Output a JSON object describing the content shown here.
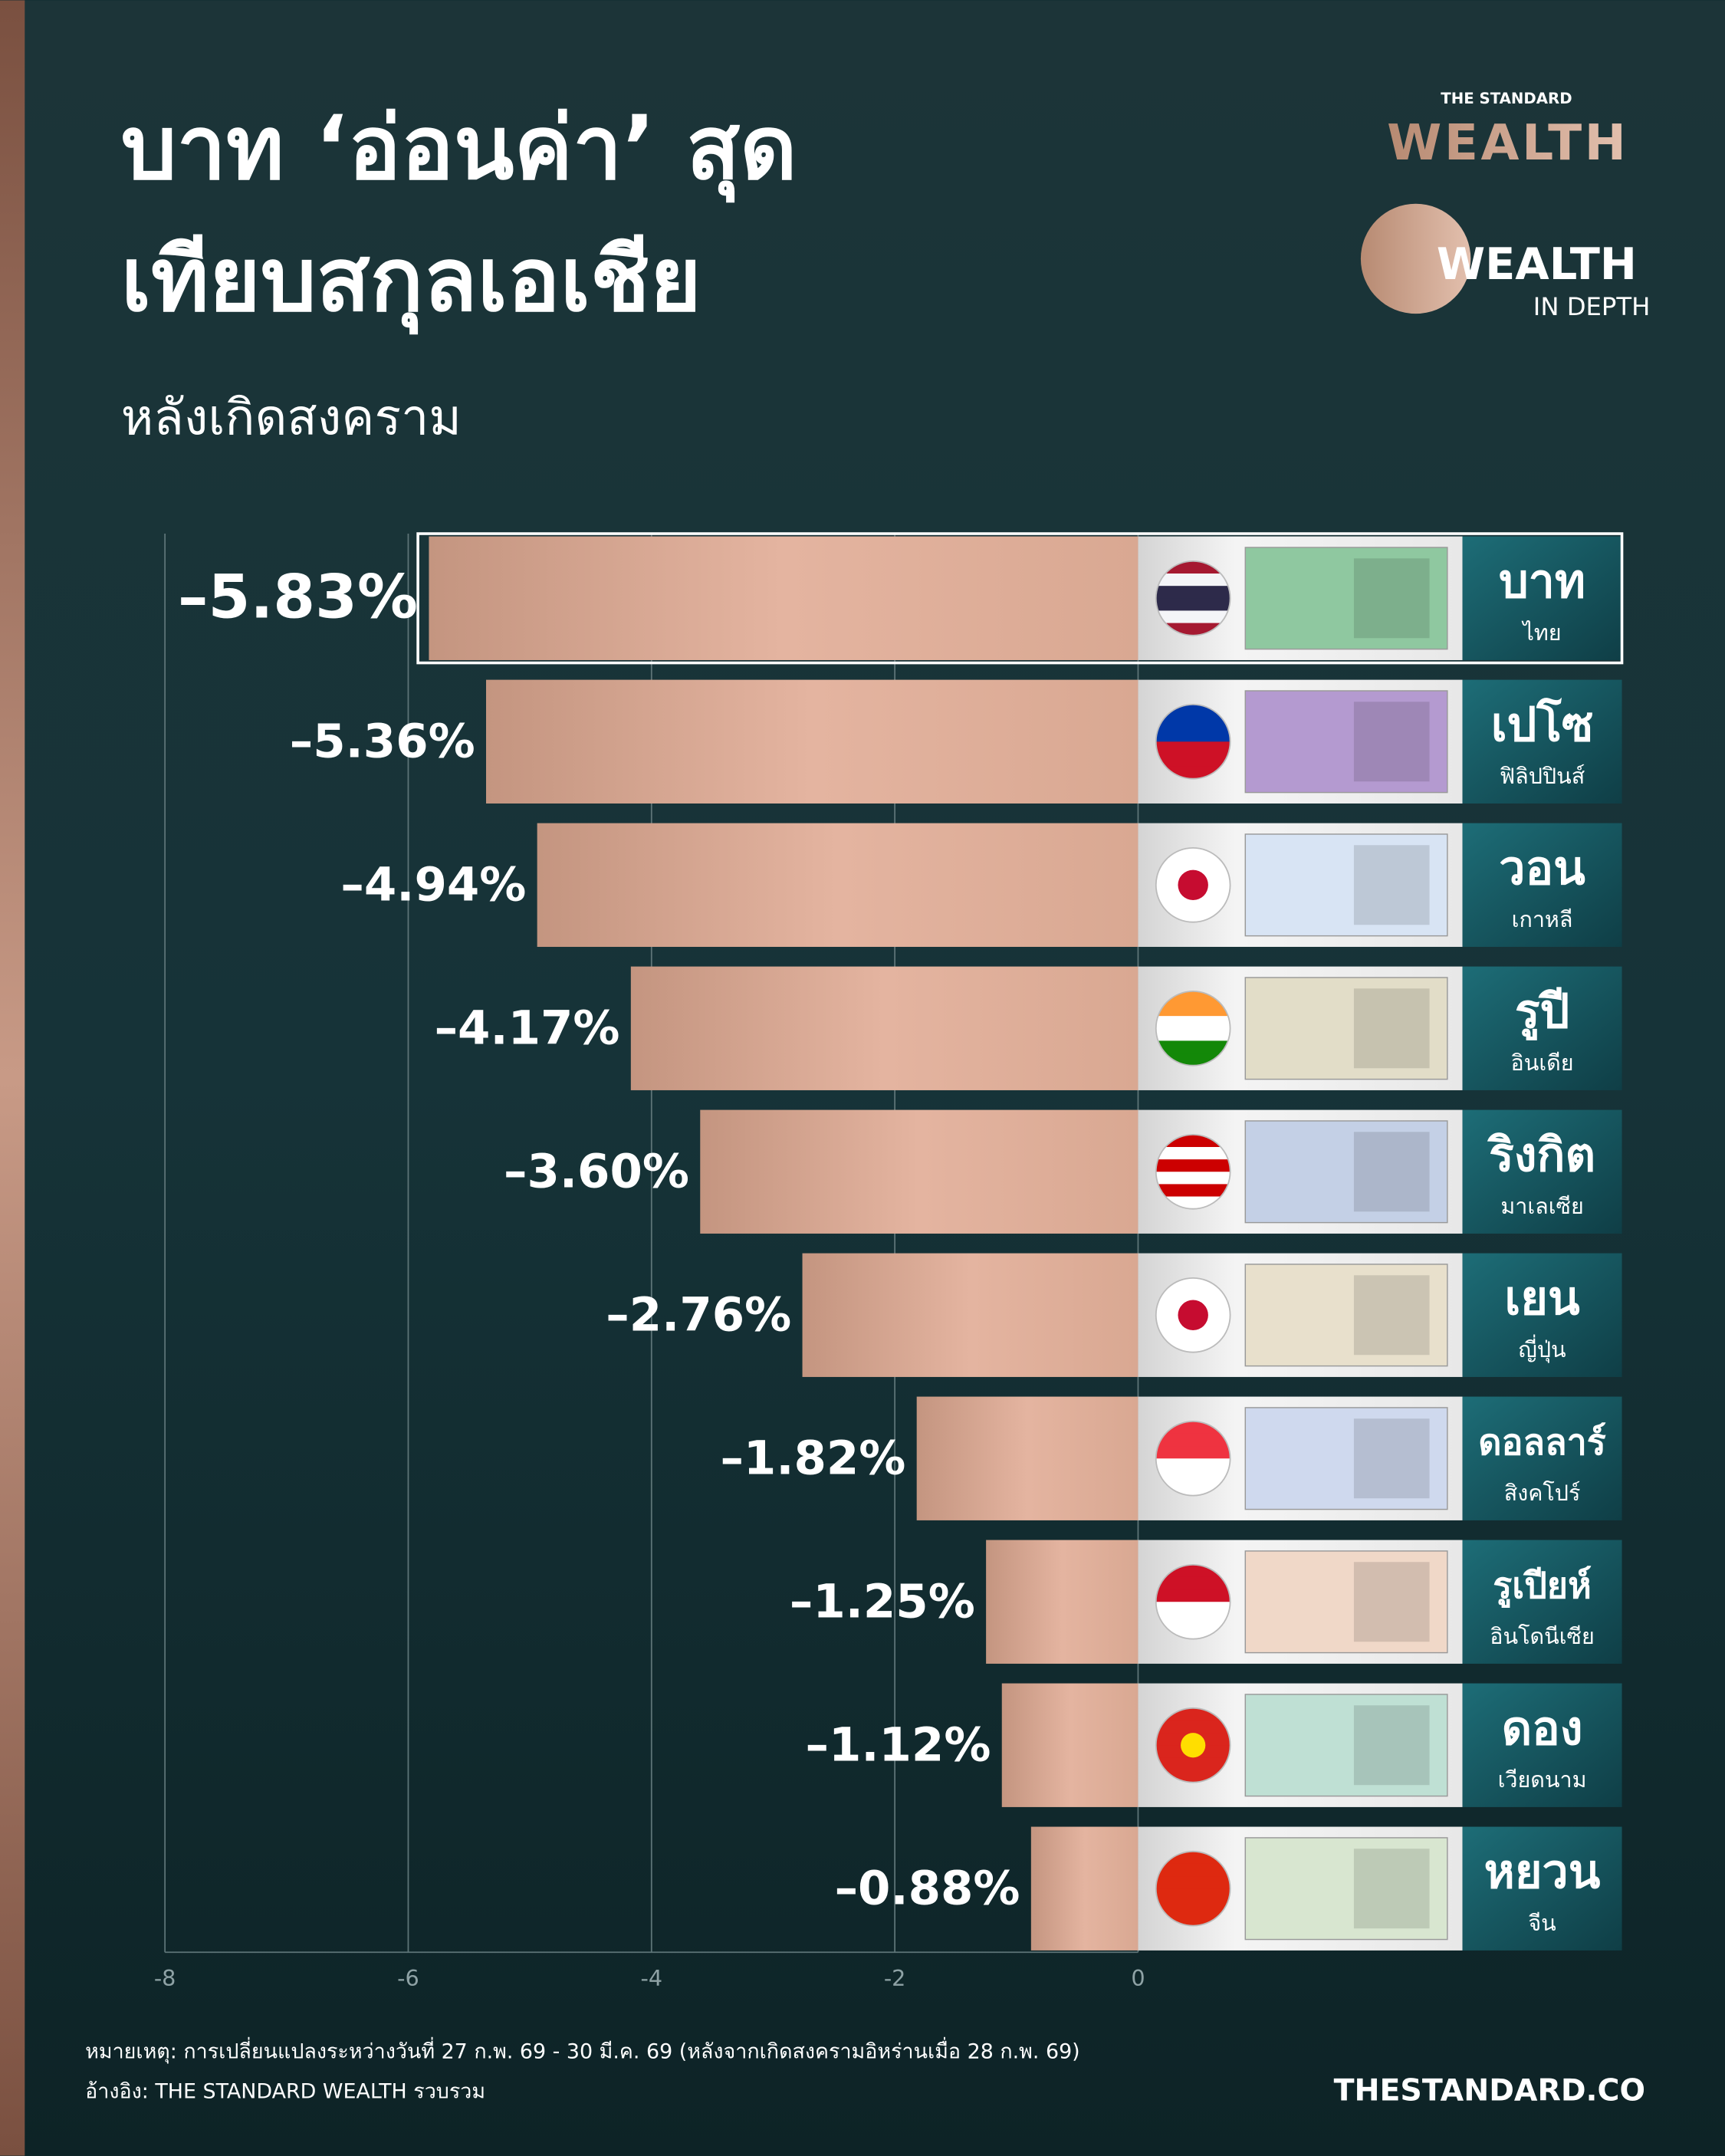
{
  "chart_data": {
    "type": "bar",
    "orientation": "horizontal",
    "title": [
      "บาท ‘อ่อนค่า’ สุด",
      "เทียบสกุลเอเชีย"
    ],
    "subtitle": "หลังเกิดสงคราม",
    "brand": {
      "top": "THE STANDARD",
      "main": "WEALTH",
      "series": "WEALTH",
      "series_sub": "IN DEPTH"
    },
    "categories": [
      "บาท",
      "เปโซ",
      "วอน",
      "รูปี",
      "ริงกิต",
      "เยน",
      "ดอลลาร์",
      "รูเปียห์",
      "ดอง",
      "หยวน"
    ],
    "countries": [
      "ไทย",
      "ฟิลิปปินส์",
      "เกาหลี",
      "อินเดีย",
      "มาเลเซีย",
      "ญี่ปุ่น",
      "สิงคโปร์",
      "อินโดนีเซีย",
      "เวียดนาม",
      "จีน"
    ],
    "values": [
      -5.83,
      -5.36,
      -4.94,
      -4.17,
      -3.6,
      -2.76,
      -1.82,
      -1.25,
      -1.12,
      -0.88
    ],
    "value_labels": [
      "–5.83%",
      "–5.36%",
      "–4.94%",
      "–4.17%",
      "–3.60%",
      "–2.76%",
      "–1.82%",
      "–1.25%",
      "–1.12%",
      "–0.88%"
    ],
    "color": "#e4b09a",
    "xlim": [
      -8,
      0
    ],
    "xticks": [
      -8,
      -6,
      -4,
      -2,
      0
    ],
    "grid": true,
    "note": "หมายเหตุ: การเปลี่ยนแปลงระหว่างวันที่ 27 ก.พ. 69 - 30 มี.ค. 69 (หลังจากเกิดสงครามอิหร่านเมื่อ 28 ก.พ. 69)",
    "source": "อ้างอิง: THE STANDARD WEALTH รวบรวม",
    "website": "THESTANDARD.CO"
  }
}
